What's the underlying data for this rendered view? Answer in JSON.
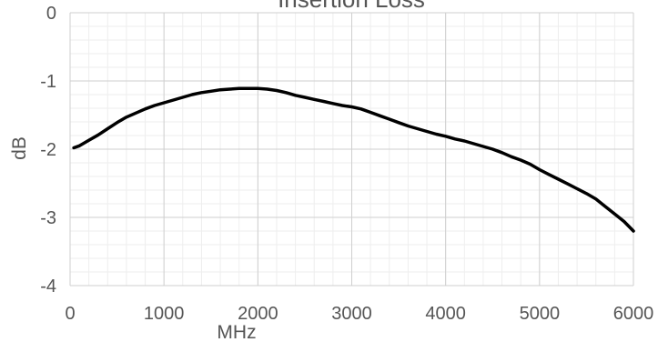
{
  "chart_data": {
    "type": "line",
    "title": "Insertion Loss",
    "xlabel": "MHz",
    "ylabel": "dB",
    "xlim": [
      0,
      6000
    ],
    "ylim": [
      -4,
      0
    ],
    "x_ticks": [
      "0",
      "1000",
      "2000",
      "3000",
      "4000",
      "5000",
      "6000"
    ],
    "y_ticks": [
      "0",
      "-1",
      "-2",
      "-3",
      "-4"
    ],
    "grid": true,
    "legend": "none",
    "line_color": "#000000",
    "series": [
      {
        "x": [
          40,
          100,
          200,
          300,
          400,
          500,
          600,
          700,
          800,
          900,
          1000,
          1100,
          1200,
          1300,
          1400,
          1500,
          1600,
          1700,
          1800,
          1900,
          2000,
          2100,
          2200,
          2300,
          2400,
          2500,
          2600,
          2700,
          2800,
          2900,
          3000,
          3100,
          3200,
          3300,
          3400,
          3500,
          3600,
          3700,
          3800,
          3900,
          4000,
          4100,
          4200,
          4300,
          4400,
          4500,
          4600,
          4700,
          4800,
          4900,
          5000,
          5100,
          5200,
          5300,
          5400,
          5500,
          5600,
          5700,
          5800,
          5900,
          6000
        ],
        "values": [
          -1.98,
          -1.95,
          -1.87,
          -1.79,
          -1.7,
          -1.61,
          -1.53,
          -1.47,
          -1.41,
          -1.36,
          -1.32,
          -1.28,
          -1.24,
          -1.2,
          -1.17,
          -1.15,
          -1.13,
          -1.12,
          -1.11,
          -1.11,
          -1.11,
          -1.12,
          -1.14,
          -1.17,
          -1.21,
          -1.24,
          -1.27,
          -1.3,
          -1.33,
          -1.36,
          -1.38,
          -1.41,
          -1.46,
          -1.51,
          -1.56,
          -1.61,
          -1.66,
          -1.7,
          -1.74,
          -1.78,
          -1.81,
          -1.85,
          -1.88,
          -1.92,
          -1.96,
          -2.0,
          -2.05,
          -2.11,
          -2.16,
          -2.22,
          -2.3,
          -2.37,
          -2.44,
          -2.51,
          -2.58,
          -2.65,
          -2.73,
          -2.84,
          -2.95,
          -3.06,
          -3.2
        ]
      }
    ]
  }
}
